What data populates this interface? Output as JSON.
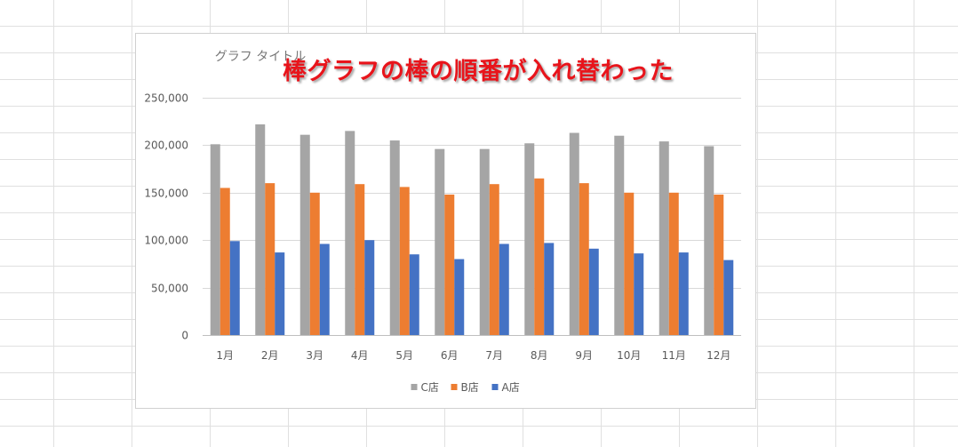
{
  "annotation": "棒グラフの棒の順番が入れ替わった",
  "colors": {
    "C店": "#a5a5a5",
    "B店": "#ed7d31",
    "A店": "#4472c4",
    "gridline": "#d9d9d9",
    "sheet_grid": "#e0e0e0"
  },
  "chart_data": {
    "type": "bar",
    "title": "グラフ タイトル",
    "categories": [
      "1月",
      "2月",
      "3月",
      "4月",
      "5月",
      "6月",
      "7月",
      "8月",
      "9月",
      "10月",
      "11月",
      "12月"
    ],
    "series": [
      {
        "name": "C店",
        "values": [
          201000,
          222000,
          211000,
          215000,
          205000,
          196000,
          196000,
          202000,
          213000,
          210000,
          204000,
          199000
        ]
      },
      {
        "name": "B店",
        "values": [
          155000,
          160000,
          150000,
          159000,
          156000,
          148000,
          159000,
          165000,
          160000,
          150000,
          150000,
          148000
        ]
      },
      {
        "name": "A店",
        "values": [
          99000,
          87000,
          96000,
          100000,
          85000,
          80000,
          96000,
          97000,
          91000,
          86000,
          87000,
          79000
        ]
      }
    ],
    "yticks": [
      "0",
      "50,000",
      "100,000",
      "150,000",
      "200,000",
      "250,000"
    ],
    "ylim": [
      0,
      250000
    ],
    "xlabel": "",
    "ylabel": "",
    "grid": true,
    "legend": "bottom"
  }
}
